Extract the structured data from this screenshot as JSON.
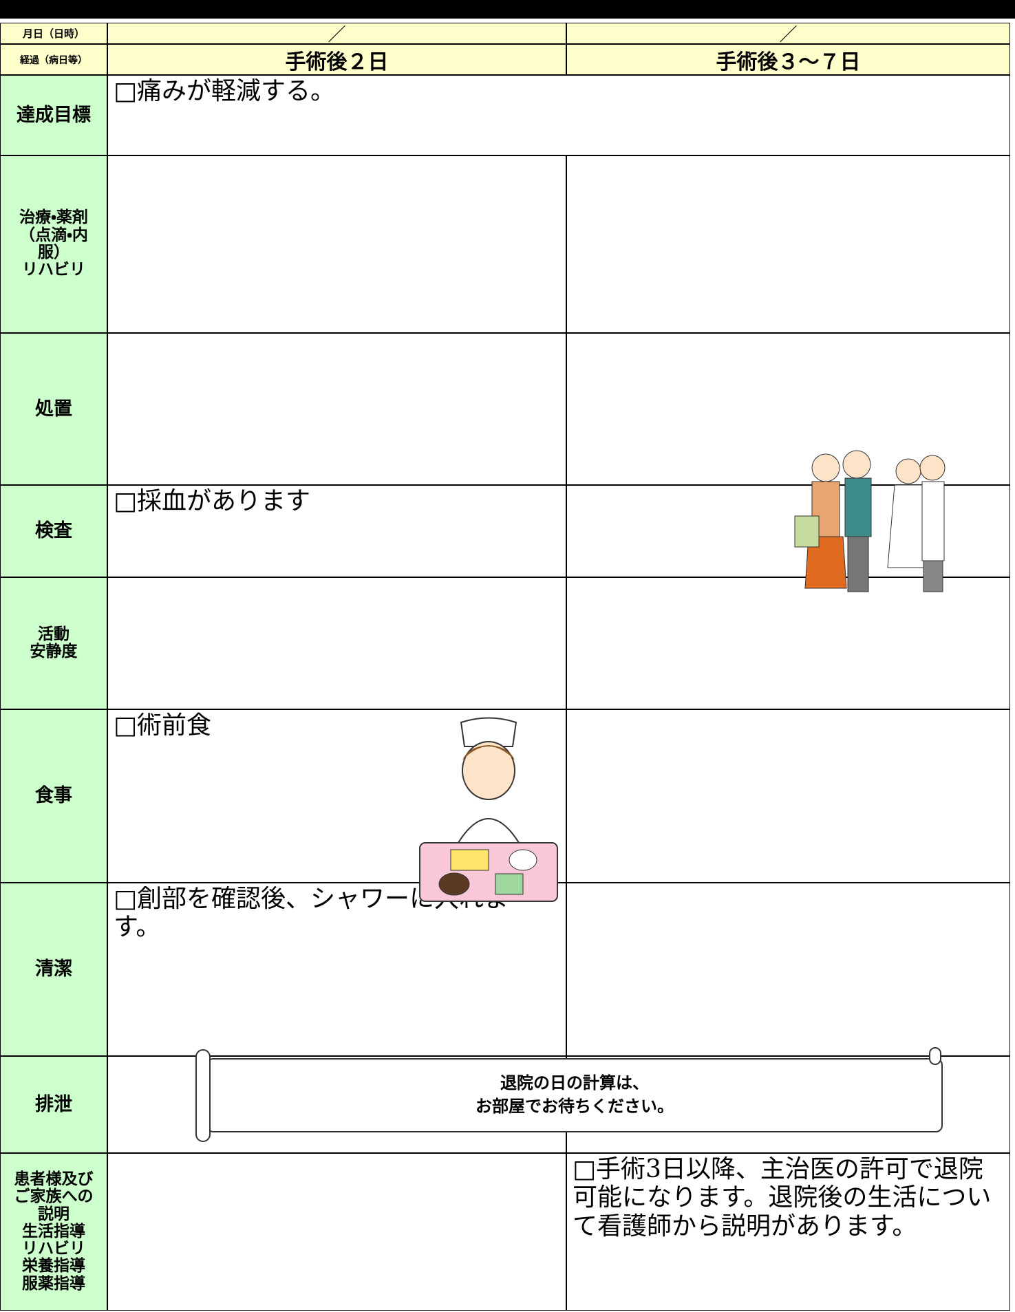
{
  "header": {
    "date_label": "月日（日時）",
    "course_label": "経過（病日等）",
    "dates": [
      "／",
      "／"
    ],
    "columns": [
      "手術後２日",
      "手術後３～７日"
    ]
  },
  "rows": [
    {
      "label": [
        "達成目標"
      ],
      "span": "□痛みが軽減する。"
    },
    {
      "label": [
        "治療・薬剤",
        "（点滴・内",
        "服）",
        "リハビリ"
      ]
    },
    {
      "label": [
        "処置"
      ]
    },
    {
      "label": [
        "検査"
      ],
      "left": "□採血があります"
    },
    {
      "label": [
        "活動",
        "安静度"
      ]
    },
    {
      "label": [
        "食事"
      ],
      "left": "□術前食"
    },
    {
      "label": [
        "清潔"
      ],
      "left": "□創部を確認後、シャワーに入れます。"
    },
    {
      "label": [
        "排泄"
      ]
    },
    {
      "label": [
        "患者様及び",
        "ご家族への",
        "説明",
        "生活指導",
        "リハビリ",
        "栄養指導",
        "服薬指導"
      ],
      "right": "□手術3日以降、主治医の許可で退院可能になります。退院後の生活について看護師から説明があります。"
    }
  ],
  "banner": [
    "退院の日の計算は、",
    "お部屋でお待ちください。"
  ]
}
